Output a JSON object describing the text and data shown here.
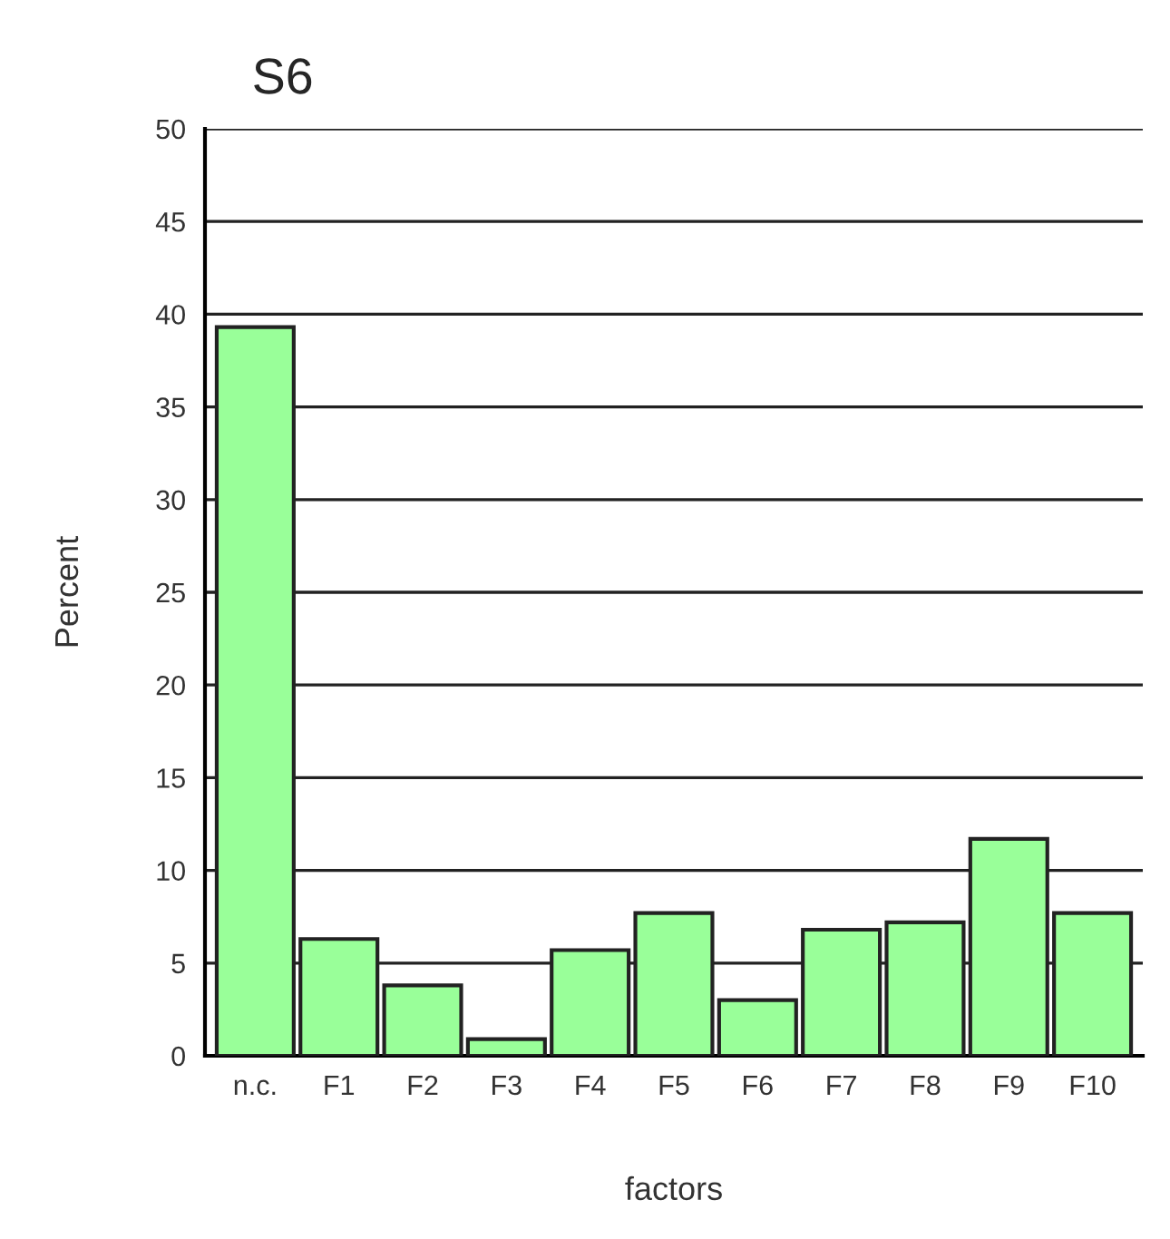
{
  "chart_data": {
    "type": "bar",
    "title": "S6",
    "xlabel": "factors",
    "ylabel": "Percent",
    "categories": [
      "n.c.",
      "F1",
      "F2",
      "F3",
      "F4",
      "F5",
      "F6",
      "F7",
      "F8",
      "F9",
      "F10"
    ],
    "values": [
      39.3,
      6.3,
      3.8,
      0.9,
      5.7,
      7.7,
      3.0,
      6.8,
      7.2,
      11.7,
      7.7
    ],
    "color": "#99ff99",
    "ylim": [
      0,
      50
    ],
    "yticks": [
      0,
      5,
      10,
      15,
      20,
      25,
      30,
      35,
      40,
      45,
      50
    ],
    "grid": "y",
    "legend": false
  }
}
